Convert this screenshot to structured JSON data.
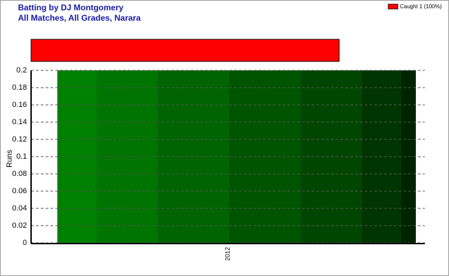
{
  "chart_data": {
    "type": "bar",
    "title": "Batting by DJ Montgomery",
    "subtitle": "All Matches, All Grades, Narara",
    "y_label": "Runs",
    "categories": [
      "2012"
    ],
    "values": [
      0.2
    ],
    "ylim": [
      0,
      0.2
    ],
    "yticks": [
      0,
      0.02,
      0.04,
      0.06,
      0.08,
      0.1,
      0.12,
      0.14,
      0.16,
      0.18,
      0.2
    ],
    "grid": true,
    "legend": {
      "name": "Caught 1 (100%)",
      "color": "#ff0000"
    }
  }
}
